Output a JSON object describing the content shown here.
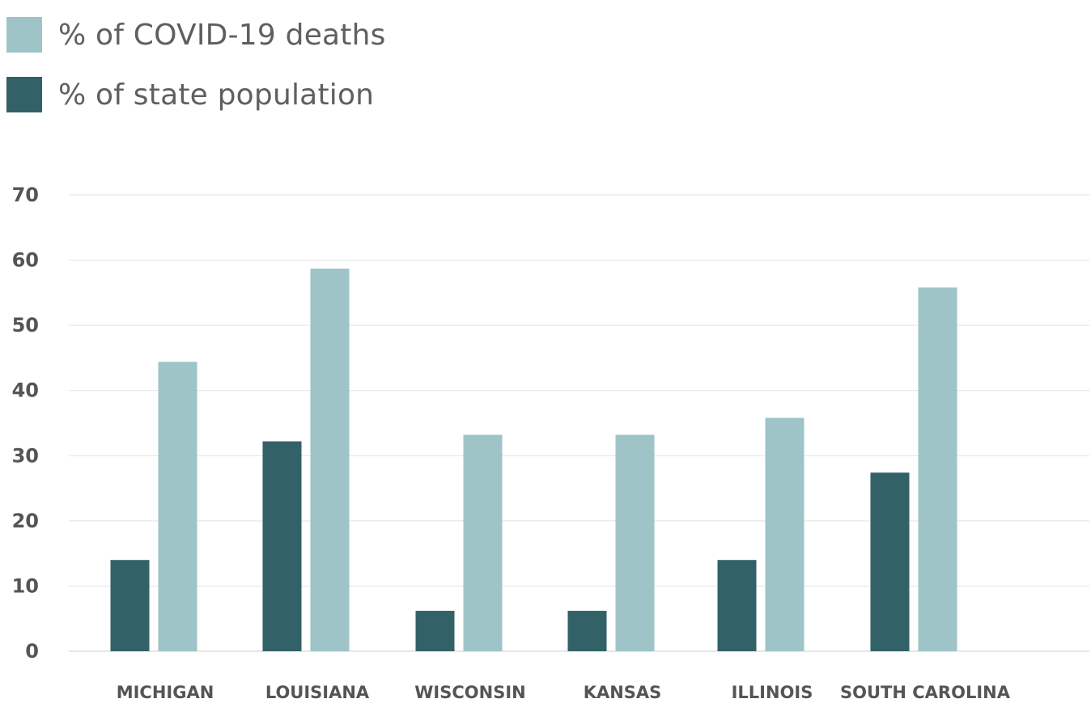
{
  "chart_data": {
    "type": "bar",
    "categories": [
      "MICHIGAN",
      "LOUISIANA",
      "WISCONSIN",
      "KANSAS",
      "ILLINOIS",
      "SOUTH CAROLINA"
    ],
    "series": [
      {
        "name": "% of state population",
        "color": "#326168",
        "values": [
          14,
          32.2,
          6.2,
          6.2,
          14,
          27.4
        ]
      },
      {
        "name": "% of COVID-19 deaths",
        "color": "#9ec4c7",
        "values": [
          44.4,
          58.7,
          33.2,
          33.2,
          35.8,
          55.8
        ]
      }
    ],
    "ylim": [
      0,
      70
    ],
    "yticks": [
      0,
      10,
      20,
      30,
      40,
      50,
      60,
      70
    ],
    "grid": true,
    "legend_position": "top-left",
    "legend": [
      {
        "label": "% of COVID-19 deaths",
        "color": "#9ec4c7"
      },
      {
        "label": "% of state population",
        "color": "#326168"
      }
    ]
  }
}
